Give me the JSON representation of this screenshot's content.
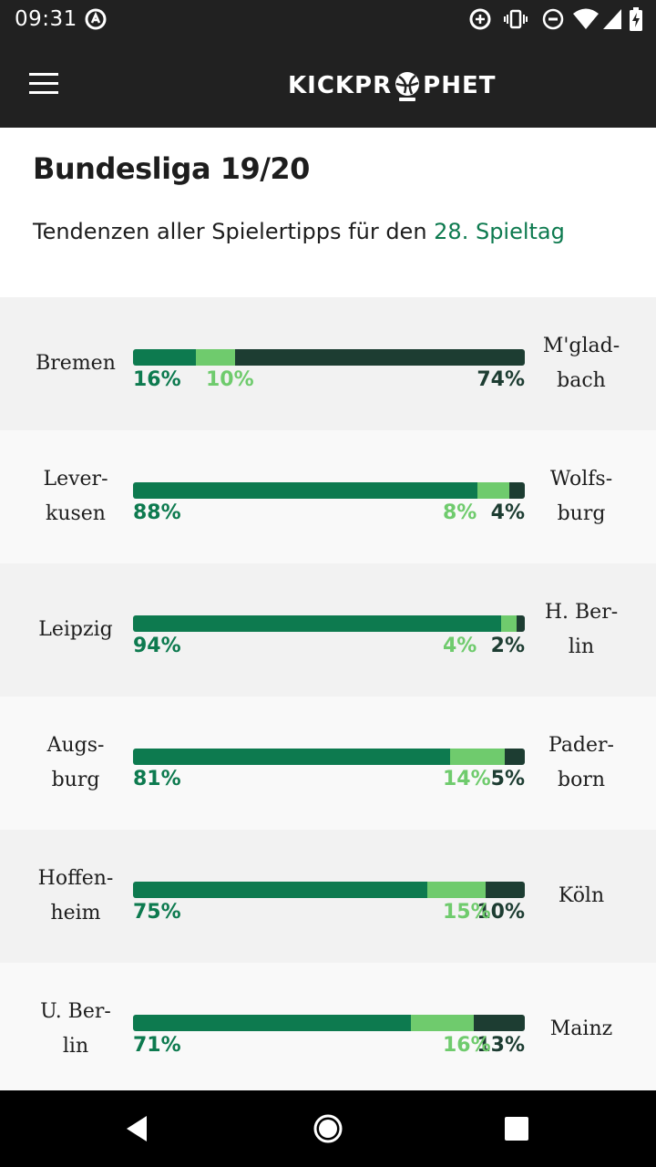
{
  "status_bar": {
    "time": "09:31",
    "icons": [
      "app-notification-icon",
      "data-saver-icon",
      "vibrate-icon",
      "do-not-disturb-icon",
      "wifi-icon",
      "signal-icon",
      "battery-charging-icon"
    ]
  },
  "header": {
    "logo_left": "KICKPR",
    "logo_right": "PHET",
    "menu_icon": "hamburger-menu-icon"
  },
  "page": {
    "title": "Bundesliga 19/20",
    "subtitle_prefix": "Tendenzen aller Spielertipps für den ",
    "subtitle_link": "28. Spieltag"
  },
  "colors": {
    "home": "#0d7a4f",
    "draw": "#6fcb6d",
    "away": "#1d3d32",
    "row_odd": "#f2f2f2",
    "row_even": "#f9f9f9"
  },
  "matches": [
    {
      "home": "Bremen",
      "away": "M'glad-\nbach",
      "home_pct": "16%",
      "draw_pct": "10%",
      "away_pct": "74%",
      "home_val": 16,
      "draw_val": 10,
      "away_val": 74
    },
    {
      "home": "Lever-\nkusen",
      "away": "Wolfs-\nburg",
      "home_pct": "88%",
      "draw_pct": "8%",
      "away_pct": "4%",
      "home_val": 88,
      "draw_val": 8,
      "away_val": 4
    },
    {
      "home": "Leipzig",
      "away": "H. Ber-\nlin",
      "home_pct": "94%",
      "draw_pct": "4%",
      "away_pct": "2%",
      "home_val": 94,
      "draw_val": 4,
      "away_val": 2
    },
    {
      "home": "Augs-\nburg",
      "away": "Pader-\nborn",
      "home_pct": "81%",
      "draw_pct": "14%",
      "away_pct": "5%",
      "home_val": 81,
      "draw_val": 14,
      "away_val": 5
    },
    {
      "home": "Hoffen-\nheim",
      "away": "Köln",
      "home_pct": "75%",
      "draw_pct": "15%",
      "away_pct": "10%",
      "home_val": 75,
      "draw_val": 15,
      "away_val": 10
    },
    {
      "home": "U. Ber-\nlin",
      "away": "Mainz",
      "home_pct": "71%",
      "draw_pct": "16%",
      "away_pct": "13%",
      "home_val": 71,
      "draw_val": 16,
      "away_val": 13
    }
  ],
  "nav_bar": {
    "buttons": [
      "back-icon",
      "home-icon",
      "recents-icon"
    ]
  }
}
